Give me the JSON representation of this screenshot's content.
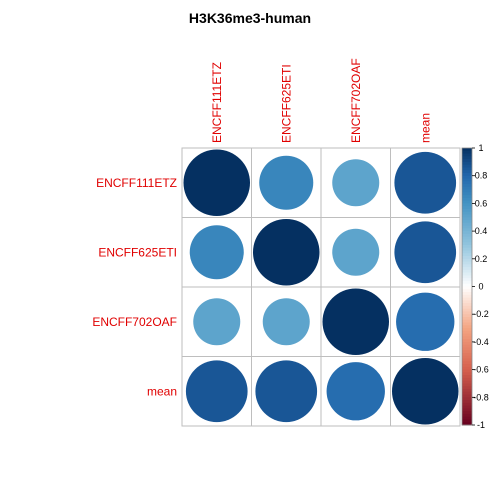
{
  "chart_data": {
    "type": "heatmap",
    "style": "correlation-circles",
    "title": "H3K36me3-human",
    "row_labels": [
      "ENCFF111ETZ",
      "ENCFF625ETI",
      "ENCFF702OAF",
      "mean"
    ],
    "col_labels": [
      "ENCFF111ETZ",
      "ENCFF625ETI",
      "ENCFF702OAF",
      "mean"
    ],
    "matrix": [
      [
        1.0,
        0.66,
        0.5,
        0.86
      ],
      [
        0.66,
        1.0,
        0.5,
        0.86
      ],
      [
        0.5,
        0.5,
        1.0,
        0.77
      ],
      [
        0.86,
        0.86,
        0.77,
        1.0
      ]
    ],
    "colorbar": {
      "range": [
        -1,
        1
      ],
      "ticks": [
        "1",
        "0.8",
        "0.6",
        "0.4",
        "0.2",
        "0",
        "-0.2",
        "-0.4",
        "-0.6",
        "-0.8",
        "-1"
      ]
    },
    "label_color": "#e00000",
    "grid_color": "#bebebe",
    "grid": true,
    "legend_position": "right"
  }
}
